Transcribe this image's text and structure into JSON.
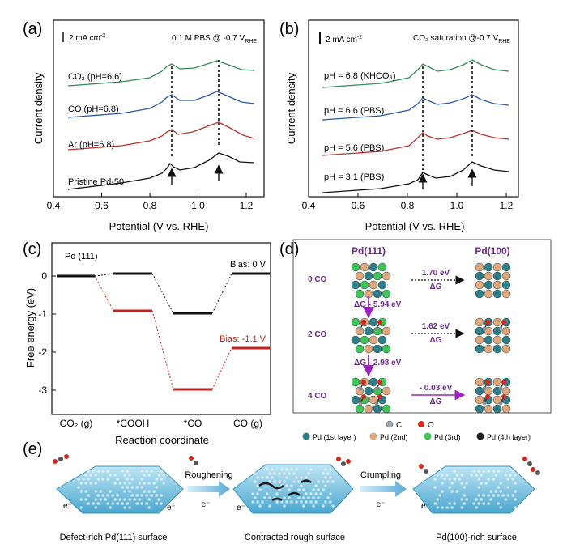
{
  "panel_a": {
    "label": "(a)",
    "scalebar": "2 mA cm",
    "scalebar_sup": "-2",
    "condition": "0.1 M PBS @ -0.7 V",
    "condition_sub": "RHE",
    "ylabel": "Current density",
    "xlabel": "Potential (V vs. RHE)",
    "xticks": [
      "0.4",
      "0.6",
      "0.8",
      "1.0",
      "1.2"
    ],
    "curves": [
      {
        "label": "CO₂ (pH=6.6)",
        "color": "#2e8b57"
      },
      {
        "label": "CO (pH=6.8)",
        "color": "#2a5aa8"
      },
      {
        "label": "Ar (pH=6.8)",
        "color": "#b8312a"
      },
      {
        "label": "Pristine Pd-50",
        "color": "#111111"
      }
    ]
  },
  "panel_b": {
    "label": "(b)",
    "scalebar": "2 mA cm",
    "scalebar_sup": "-2",
    "condition": "CO₂ saturation @-0.7 V",
    "condition_sub": "RHE",
    "ylabel": "Current density",
    "xlabel": "Potential (V vs. RHE)",
    "xticks": [
      "0.4",
      "0.6",
      "0.8",
      "1.0",
      "1.2"
    ],
    "curves": [
      {
        "label": "pH = 6.8 (KHCO₃)",
        "color": "#2e8b57"
      },
      {
        "label": "pH = 6.6 (PBS)",
        "color": "#2a5aa8"
      },
      {
        "label": "pH = 5.6 (PBS)",
        "color": "#b8312a"
      },
      {
        "label": "pH = 3.1 (PBS)",
        "color": "#111111"
      }
    ]
  },
  "panel_c": {
    "label": "(c)",
    "surface": "Pd (111)",
    "ylabel": "Free energy (eV)",
    "xlabel": "Reaction coordinate",
    "yticks": [
      "0",
      "-1",
      "-2",
      "-3"
    ],
    "states": [
      "CO₂ (g)",
      "*COOH",
      "*CO",
      "CO (g)"
    ],
    "bias_0_label": "Bias: 0 V",
    "bias_neg_label": "Bias: -1.1 V",
    "bias_0_color": "#111111",
    "bias_neg_color": "#c0231c"
  },
  "panel_d": {
    "label": "(d)",
    "left_title": "Pd(111)",
    "right_title": "Pd(100)",
    "rows": [
      {
        "label": "0 CO",
        "energy": "1.70 eV",
        "dg": "ΔG"
      },
      {
        "label": "2 CO",
        "energy": "1.62 eV",
        "dg": "ΔG"
      },
      {
        "label": "4 CO",
        "energy": "- 0.03 eV",
        "dg": "ΔG"
      }
    ],
    "steps": [
      "ΔG - 5.94 eV",
      "ΔG - 2.98 eV"
    ],
    "legend": {
      "pd1": "Pd (1st layer)",
      "pd2": "Pd (2nd)",
      "pd3": "Pd (3rd)",
      "pd4": "Pd (4th layer)",
      "c": "C",
      "o": "O"
    }
  },
  "panel_e": {
    "label": "(e)",
    "surfaces": [
      "Defect-rich Pd(111) surface",
      "Contracted rough surface",
      "Pd(100)-rich surface"
    ],
    "processes": [
      "Roughening",
      "Crumpling"
    ],
    "electron": "e⁻"
  }
}
